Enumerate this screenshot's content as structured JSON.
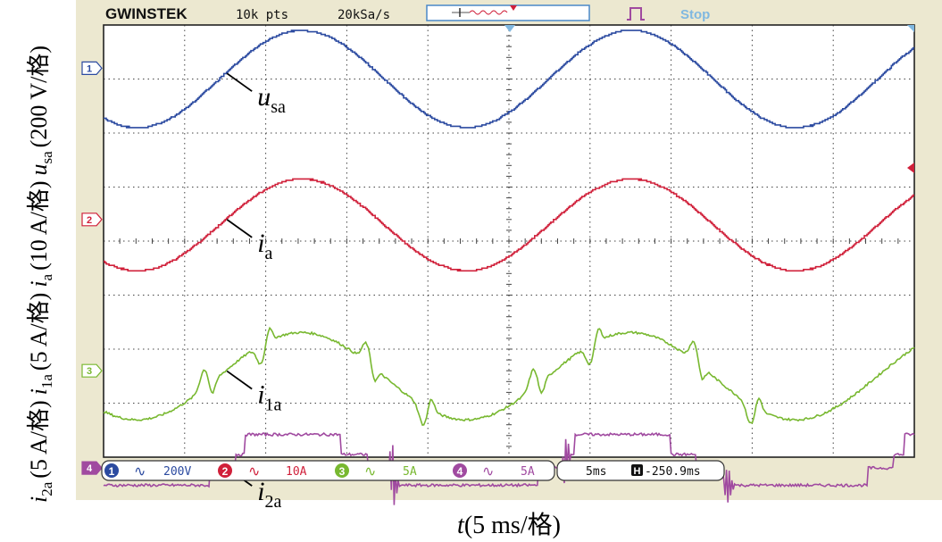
{
  "header": {
    "brand": "GWINSTEK",
    "points": "10k pts",
    "sample_rate": "20kSa/s",
    "run_state": "Stop"
  },
  "y_axis_labels": [
    {
      "sym": "u",
      "sub": "sa",
      "scale": "(200 V/格)"
    },
    {
      "sym": "i",
      "sub": "a",
      "scale": "(10 A/格)"
    },
    {
      "sym": "i",
      "sub": "1a",
      "scale": "(5 A/格)"
    },
    {
      "sym": "i",
      "sub": "2a",
      "scale": "(5 A/格)"
    }
  ],
  "x_axis_label": {
    "sym": "t",
    "scale": "(5 ms/格)"
  },
  "status_bar": {
    "ch1": {
      "num": "1",
      "scale": "200V"
    },
    "ch2": {
      "num": "2",
      "scale": "10A"
    },
    "ch3": {
      "num": "3",
      "scale": "5A"
    },
    "ch4": {
      "num": "4",
      "scale": "5A"
    },
    "timebase": "5ms",
    "h_position": "-250.9ms"
  },
  "colors": {
    "bezel": "#ece8d0",
    "screen": "#ffffff",
    "grid": "#333333",
    "accent": "#4a88c8",
    "ch1": "#2b4aa0",
    "ch2": "#d0203a",
    "ch3": "#78b830",
    "ch4": "#a04aa0"
  },
  "chart_data": {
    "type": "line",
    "x_unit": "ms",
    "x_range": [
      0,
      50
    ],
    "divisions": {
      "x": 10,
      "y": 8
    },
    "grid": true,
    "series": [
      {
        "name": "u_sa",
        "label": {
          "sym": "u",
          "sub": "sa"
        },
        "channel": 1,
        "scale": "200 V/div",
        "marker": "1",
        "offset_div": 3.0,
        "amplitude_div": 0.9,
        "period_ms": 20.3,
        "peak_ms": 12.2,
        "x": [
          0,
          2,
          4,
          6,
          8,
          10,
          12,
          14,
          16,
          18,
          20,
          22,
          24,
          26,
          28,
          30,
          32,
          34,
          36,
          38,
          40,
          42,
          44,
          46,
          48,
          50
        ],
        "y": [
          -0.54,
          -0.87,
          -0.83,
          -0.34,
          0.31,
          0.79,
          0.9,
          0.58,
          -0.03,
          -0.62,
          -0.9,
          -0.72,
          -0.15,
          0.5,
          0.87,
          0.83,
          0.35,
          -0.3,
          -0.79,
          -0.9,
          -0.6,
          0.02,
          0.61,
          0.9,
          0.73,
          0.17
        ],
        "label_at_ms": 7.5
      },
      {
        "name": "i_a",
        "label": {
          "sym": "i",
          "sub": "a"
        },
        "channel": 2,
        "scale": "10 A/div",
        "marker": "2",
        "offset_div": 0.3,
        "amplitude_div": 0.85,
        "period_ms": 20.3,
        "peak_ms": 12.2,
        "x": [
          0,
          2,
          4,
          6,
          8,
          10,
          12,
          14,
          16,
          18,
          20,
          22,
          24,
          26,
          28,
          30,
          32,
          34,
          36,
          38,
          40,
          42,
          44,
          46,
          48,
          50
        ],
        "y": [
          -0.51,
          -0.82,
          -0.79,
          -0.32,
          0.29,
          0.74,
          0.85,
          0.55,
          -0.03,
          -0.59,
          -0.85,
          -0.68,
          -0.14,
          0.47,
          0.82,
          0.79,
          0.33,
          -0.29,
          -0.74,
          -0.85,
          -0.57,
          0.02,
          0.57,
          0.85,
          0.69,
          0.16
        ],
        "label_at_ms": 7.5
      },
      {
        "name": "i_1a",
        "label": {
          "sym": "i",
          "sub": "1a"
        },
        "channel": 3,
        "scale": "5 A/div",
        "marker": "3",
        "offset_div": -2.5,
        "amplitude_div": 0.85,
        "period_ms": 20.3,
        "peak_ms": 12.2,
        "spikes_ms": [
          6.2,
          9.7,
          16.2,
          19.7,
          26.5,
          30.0,
          36.4,
          39.9
        ],
        "label_at_ms": 7.5
      },
      {
        "name": "i_2a",
        "label": {
          "sym": "i",
          "sub": "2a"
        },
        "channel": 4,
        "scale": "5 A/div",
        "marker": "4",
        "offset_div": -4.2,
        "amplitude_div": 0.85,
        "period_ms": 20.3,
        "peak_ms": 12.2,
        "spikes_ms": [
          17.8,
          28.6,
          38.4
        ],
        "label_at_ms": 7.5
      }
    ]
  }
}
